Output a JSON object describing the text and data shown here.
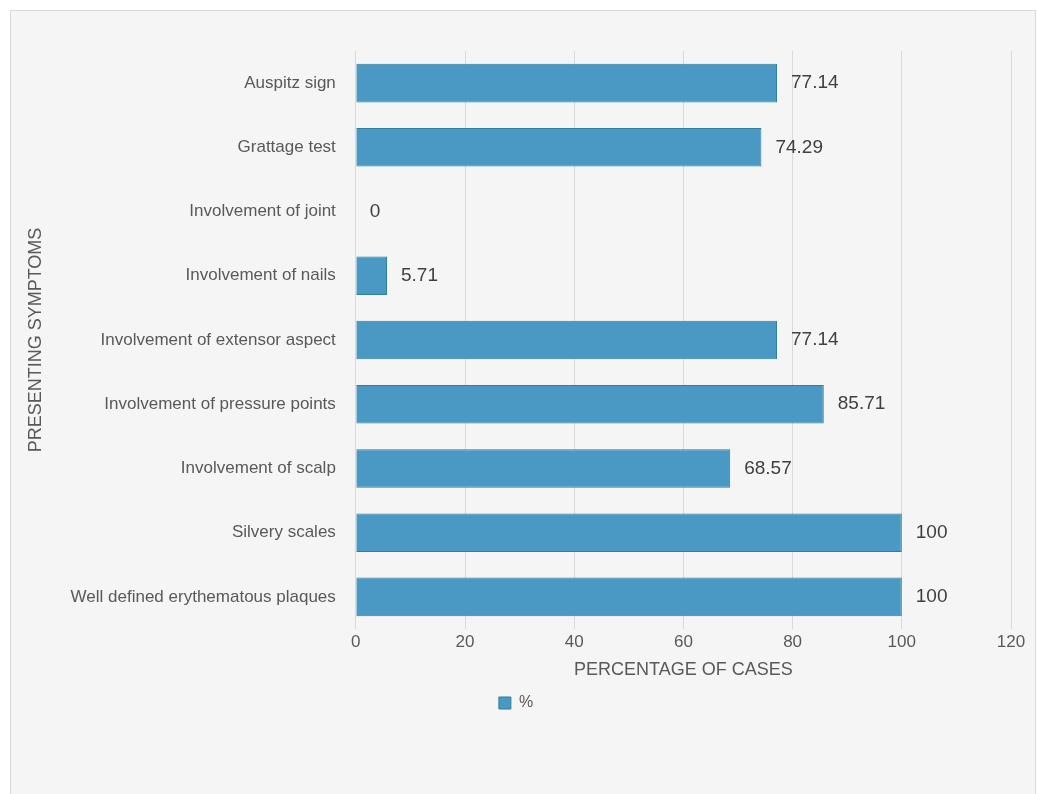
{
  "chart_data": {
    "type": "bar",
    "orientation": "horizontal",
    "xlabel": "PERCENTAGE OF CASES",
    "ylabel": "PRESENTING SYMPTOMS",
    "categories": [
      "Auspitz sign",
      "Grattage test",
      "Involvement of joint",
      "Involvement of nails",
      "Involvement of extensor aspect",
      "Involvement of pressure points",
      "Involvement of scalp",
      "Silvery scales",
      "Well defined erythematous plaques"
    ],
    "series": [
      {
        "name": "%",
        "color": "#4a98c4",
        "values": [
          77.14,
          74.29,
          0,
          5.71,
          77.14,
          85.71,
          68.57,
          100,
          100
        ]
      }
    ],
    "xlim": [
      0,
      120
    ],
    "xticks": [
      0,
      20,
      40,
      60,
      80,
      100,
      120
    ],
    "grid": "x",
    "legend": "bottom",
    "data_labels": true
  }
}
